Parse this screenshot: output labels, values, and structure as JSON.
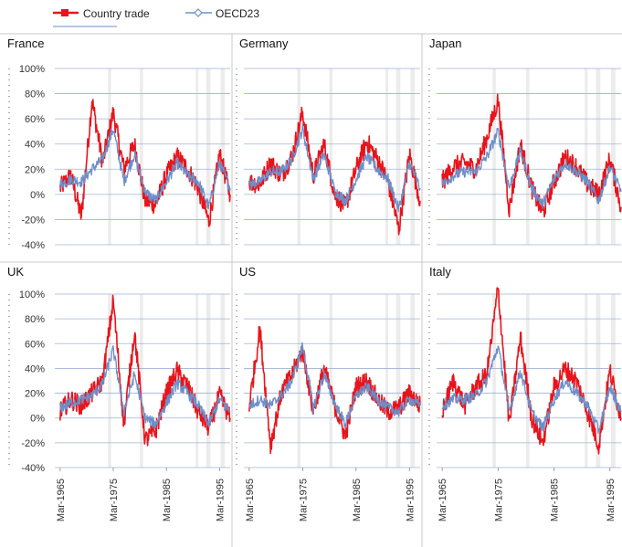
{
  "legend": {
    "country_label": "Country trade",
    "oecd_label": "OECD23"
  },
  "colors": {
    "country": "#e8141b",
    "oecd": "#6d8fc9",
    "grid": "#9fb3d6",
    "shade": "#ececec",
    "divider": "#c8c8c8"
  },
  "chart_data": [
    {
      "type": "line",
      "title": "France",
      "ylim": [
        -40,
        100
      ],
      "yticks": [
        "100%",
        "80%",
        "60%",
        "40%",
        "20%",
        "0%",
        "-20%",
        "-40%"
      ],
      "x": [
        1965,
        1967,
        1969,
        1971,
        1973,
        1975,
        1977,
        1979,
        1981,
        1983,
        1985,
        1987,
        1989,
        1991,
        1993,
        1995,
        1997
      ],
      "series": [
        {
          "name": "Country trade",
          "values": [
            5,
            15,
            -18,
            75,
            25,
            65,
            20,
            40,
            -5,
            -8,
            15,
            30,
            20,
            5,
            -22,
            32,
            0
          ]
        },
        {
          "name": "OECD23",
          "values": [
            8,
            12,
            10,
            20,
            28,
            52,
            10,
            32,
            2,
            -5,
            10,
            25,
            15,
            10,
            -10,
            25,
            5
          ]
        }
      ]
    },
    {
      "type": "line",
      "title": "Germany",
      "ylim": [
        -40,
        100
      ],
      "yticks": [
        "100%",
        "80%",
        "60%",
        "40%",
        "20%",
        "0%",
        "-20%",
        "-40%"
      ],
      "x": [
        1965,
        1967,
        1969,
        1971,
        1973,
        1975,
        1977,
        1979,
        1981,
        1983,
        1985,
        1987,
        1989,
        1991,
        1993,
        1995,
        1997
      ],
      "series": [
        {
          "name": "Country trade",
          "values": [
            10,
            8,
            25,
            15,
            30,
            65,
            15,
            40,
            0,
            -10,
            20,
            42,
            28,
            10,
            -28,
            32,
            -5
          ]
        },
        {
          "name": "OECD23",
          "values": [
            8,
            10,
            18,
            18,
            28,
            52,
            12,
            32,
            3,
            -5,
            12,
            30,
            20,
            12,
            -12,
            25,
            5
          ]
        }
      ]
    },
    {
      "type": "line",
      "title": "Japan",
      "ylim": [
        -40,
        100
      ],
      "yticks": [
        "100%",
        "80%",
        "60%",
        "40%",
        "20%",
        "0%",
        "-20%",
        "-40%"
      ],
      "x": [
        1965,
        1967,
        1969,
        1971,
        1973,
        1975,
        1977,
        1979,
        1981,
        1983,
        1985,
        1987,
        1989,
        1991,
        1993,
        1995,
        1997
      ],
      "series": [
        {
          "name": "Country trade",
          "values": [
            10,
            22,
            25,
            20,
            45,
            75,
            -12,
            40,
            5,
            -15,
            10,
            30,
            22,
            8,
            0,
            28,
            -10
          ]
        },
        {
          "name": "OECD23",
          "values": [
            8,
            15,
            18,
            18,
            30,
            50,
            5,
            35,
            5,
            -8,
            12,
            25,
            18,
            10,
            -5,
            22,
            2
          ]
        }
      ]
    },
    {
      "type": "line",
      "title": "UK",
      "ylim": [
        -40,
        100
      ],
      "yticks": [
        "100%",
        "80%",
        "60%",
        "40%",
        "20%",
        "0%",
        "-20%",
        "-40%"
      ],
      "x": [
        1965,
        1967,
        1969,
        1971,
        1973,
        1975,
        1977,
        1979,
        1981,
        1983,
        1985,
        1987,
        1989,
        1991,
        1993,
        1995,
        1997
      ],
      "series": [
        {
          "name": "Country trade",
          "values": [
            5,
            15,
            10,
            20,
            30,
            95,
            -5,
            70,
            -18,
            -10,
            20,
            38,
            25,
            5,
            -8,
            18,
            0
          ]
        },
        {
          "name": "OECD23",
          "values": [
            8,
            12,
            15,
            18,
            28,
            55,
            5,
            35,
            0,
            -5,
            12,
            28,
            20,
            10,
            -5,
            15,
            5
          ]
        }
      ]
    },
    {
      "type": "line",
      "title": "US",
      "ylim": [
        -40,
        100
      ],
      "yticks": [
        "100%",
        "80%",
        "60%",
        "40%",
        "20%",
        "0%",
        "-20%",
        "-40%"
      ],
      "x": [
        1965,
        1967,
        1969,
        1971,
        1973,
        1975,
        1977,
        1979,
        1981,
        1983,
        1985,
        1987,
        1989,
        1991,
        1993,
        1995,
        1997
      ],
      "series": [
        {
          "name": "Country trade",
          "values": [
            10,
            72,
            -22,
            20,
            35,
            55,
            5,
            40,
            10,
            -15,
            25,
            30,
            15,
            5,
            8,
            20,
            10
          ]
        },
        {
          "name": "OECD23",
          "values": [
            10,
            15,
            10,
            18,
            30,
            58,
            8,
            35,
            12,
            -5,
            18,
            25,
            15,
            8,
            5,
            15,
            10
          ]
        }
      ]
    },
    {
      "type": "line",
      "title": "Italy",
      "ylim": [
        -40,
        100
      ],
      "yticks": [
        "100%",
        "80%",
        "60%",
        "40%",
        "20%",
        "0%",
        "-20%",
        "-40%"
      ],
      "x": [
        1965,
        1967,
        1969,
        1971,
        1973,
        1975,
        1977,
        1979,
        1981,
        1983,
        1985,
        1987,
        1989,
        1991,
        1993,
        1995,
        1997
      ],
      "series": [
        {
          "name": "Country trade",
          "values": [
            5,
            30,
            10,
            25,
            35,
            105,
            -5,
            65,
            0,
            -20,
            25,
            40,
            30,
            5,
            -22,
            38,
            0
          ]
        },
        {
          "name": "OECD23",
          "values": [
            10,
            15,
            15,
            18,
            30,
            58,
            5,
            38,
            5,
            -8,
            15,
            30,
            20,
            10,
            -10,
            25,
            5
          ]
        }
      ]
    }
  ],
  "x_tick_labels": [
    "Mar-1965",
    "Mar-1975",
    "Mar-1985",
    "Mar-1995"
  ],
  "x_tick_years": [
    1965,
    1975,
    1985,
    1995
  ]
}
